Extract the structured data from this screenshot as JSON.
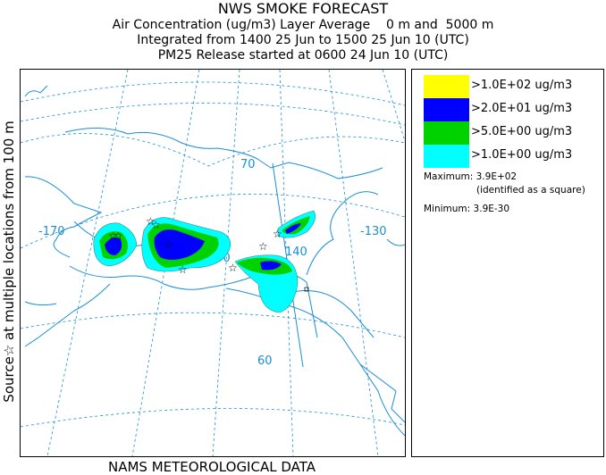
{
  "header": {
    "title": "NWS SMOKE FORECAST",
    "line1": "Air Concentration (ug/m3) Layer Average    0 m and  5000 m",
    "line2": "Integrated from 1400 25 Jun to 1500 25 Jun 10 (UTC)",
    "line3": "PM25 Release started at 0600 24 Jun 10 (UTC)"
  },
  "side_label": "Source☆ at multiple locations    from   100 m",
  "footer": "NAMS METEOROLOGICAL DATA",
  "map": {
    "grid_labels": {
      "lon_170": "-170",
      "lon_150": "150",
      "lon_140": "140",
      "lon_130": "-130",
      "lat_70": "70",
      "lat_60": "60"
    }
  },
  "legend": {
    "items": [
      {
        "label": ">1.0E+02 ug/m3",
        "color": "#ffff00"
      },
      {
        "label": ">2.0E+01 ug/m3",
        "color": "#0000ff"
      },
      {
        "label": ">5.0E+00 ug/m3",
        "color": "#00d200"
      },
      {
        "label": ">1.0E+00 ug/m3",
        "color": "#00ffff"
      }
    ],
    "maximum_label": "Maximum:",
    "maximum_value": "3.9E+02",
    "maximum_note": "(identified as a square)",
    "minimum_label": "Minimum:",
    "minimum_value": "3.9E-30"
  },
  "colors": {
    "coast": "#1a8fd6",
    "grid": "#1a8fd6"
  }
}
